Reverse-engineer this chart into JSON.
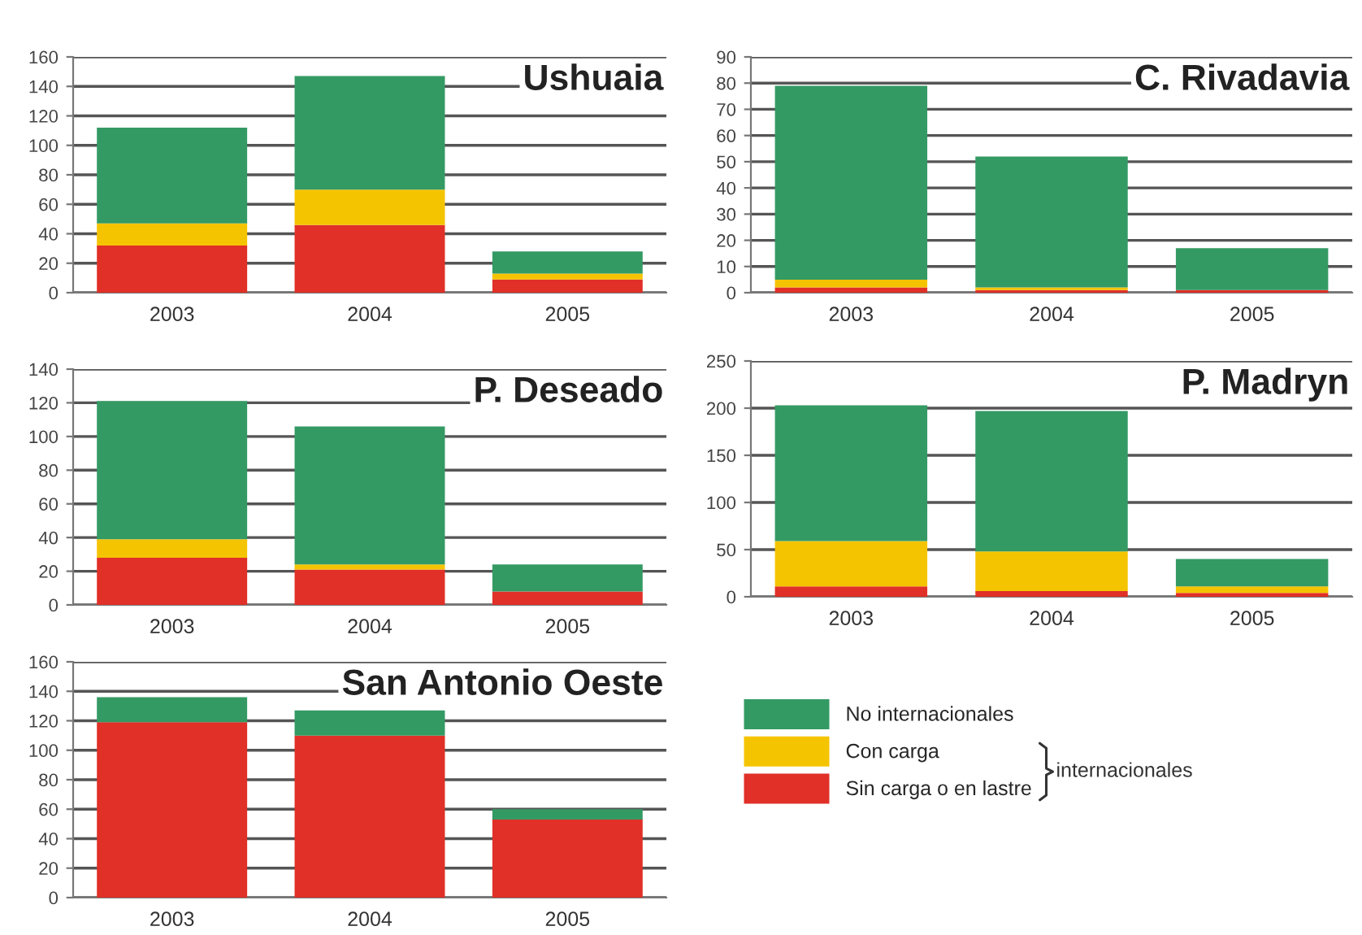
{
  "chart_data": [
    {
      "type": "bar",
      "title": "Ushuaia",
      "stacked": true,
      "categories": [
        "2003",
        "2004",
        "2005"
      ],
      "ylim": [
        0,
        160
      ],
      "yticks": [
        0,
        20,
        40,
        60,
        80,
        100,
        120,
        140,
        160
      ],
      "grid": "y",
      "legend": false,
      "series": [
        {
          "color": "#e03028",
          "values": [
            32,
            46,
            9
          ]
        },
        {
          "color": "#f5c400",
          "values": [
            15,
            24,
            4
          ]
        },
        {
          "color": "#349a64",
          "values": [
            65,
            77,
            15
          ]
        }
      ]
    },
    {
      "type": "bar",
      "title": "C. Rivadavia",
      "stacked": true,
      "categories": [
        "2003",
        "2004",
        "2005"
      ],
      "ylim": [
        0,
        90
      ],
      "yticks": [
        0,
        10,
        20,
        30,
        40,
        50,
        60,
        70,
        80,
        90
      ],
      "grid": "y",
      "legend": false,
      "series": [
        {
          "color": "#e03028",
          "values": [
            2,
            1,
            1
          ]
        },
        {
          "color": "#f5c400",
          "values": [
            3,
            1,
            0
          ]
        },
        {
          "color": "#349a64",
          "values": [
            74,
            50,
            16
          ]
        }
      ]
    },
    {
      "type": "bar",
      "title": "P. Deseado",
      "stacked": true,
      "categories": [
        "2003",
        "2004",
        "2005"
      ],
      "ylim": [
        0,
        140
      ],
      "yticks": [
        0,
        20,
        40,
        60,
        80,
        100,
        120,
        140
      ],
      "grid": "y",
      "legend": false,
      "series": [
        {
          "color": "#e03028",
          "values": [
            28,
            21,
            8
          ]
        },
        {
          "color": "#f5c400",
          "values": [
            11,
            3,
            0
          ]
        },
        {
          "color": "#349a64",
          "values": [
            82,
            82,
            16
          ]
        }
      ]
    },
    {
      "type": "bar",
      "title": "P. Madryn",
      "stacked": true,
      "categories": [
        "2003",
        "2004",
        "2005"
      ],
      "ylim": [
        0,
        250
      ],
      "yticks": [
        0,
        50,
        100,
        150,
        200,
        250
      ],
      "grid": "y",
      "legend": false,
      "series": [
        {
          "color": "#e03028",
          "values": [
            11,
            6,
            4
          ]
        },
        {
          "color": "#f5c400",
          "values": [
            48,
            42,
            7
          ]
        },
        {
          "color": "#349a64",
          "values": [
            144,
            149,
            29
          ]
        }
      ]
    },
    {
      "type": "bar",
      "title": "San Antonio Oeste",
      "stacked": true,
      "categories": [
        "2003",
        "2004",
        "2005"
      ],
      "ylim": [
        0,
        160
      ],
      "yticks": [
        0,
        20,
        40,
        60,
        80,
        100,
        120,
        140,
        160
      ],
      "grid": "y",
      "legend": "right",
      "annotations": [
        "internacionales"
      ],
      "series": [
        {
          "name": "Sin carga o en lastre",
          "color": "#e03028",
          "values": [
            119,
            110,
            53
          ]
        },
        {
          "name": "Con carga",
          "color": "#f5c400",
          "values": [
            0,
            0,
            0
          ]
        },
        {
          "name": "No internacionales",
          "color": "#349a64",
          "values": [
            17,
            17,
            7
          ]
        }
      ]
    }
  ]
}
